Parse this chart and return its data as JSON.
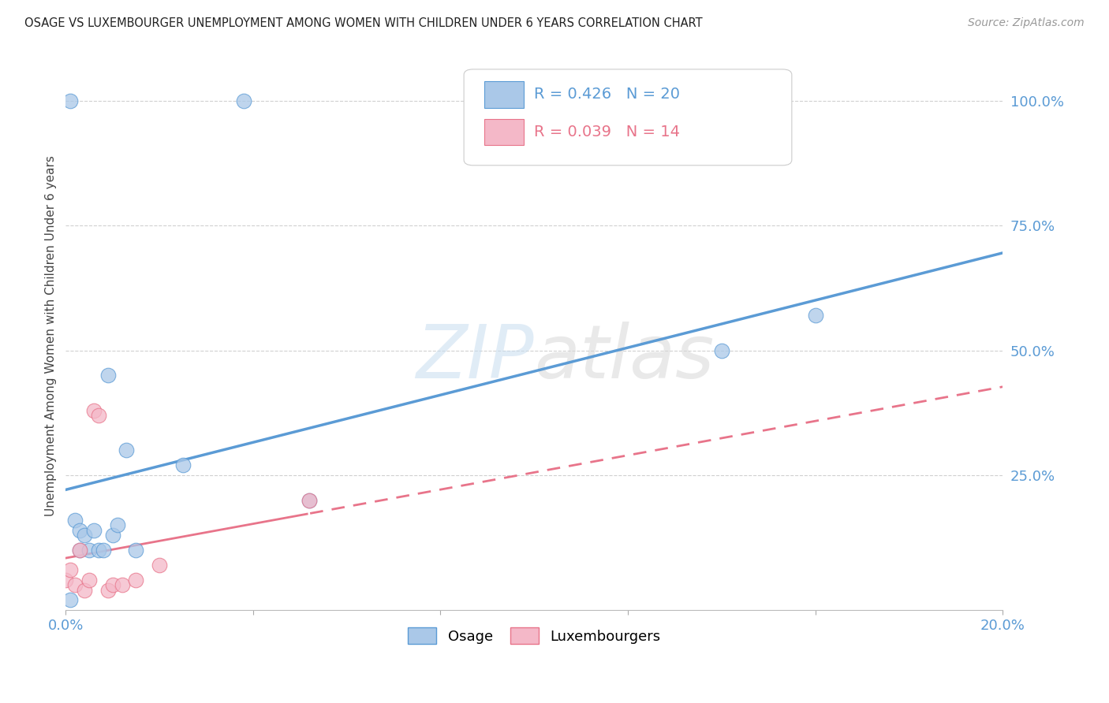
{
  "title": "OSAGE VS LUXEMBOURGER UNEMPLOYMENT AMONG WOMEN WITH CHILDREN UNDER 6 YEARS CORRELATION CHART",
  "source": "Source: ZipAtlas.com",
  "ylabel": "Unemployment Among Women with Children Under 6 years",
  "r_osage": 0.426,
  "n_osage": 20,
  "r_lux": 0.039,
  "n_lux": 14,
  "xlim": [
    0.0,
    0.2
  ],
  "ylim": [
    -0.02,
    1.08
  ],
  "xticks": [
    0.0,
    0.04,
    0.08,
    0.12,
    0.16,
    0.2
  ],
  "xtick_labels": [
    "0.0%",
    "",
    "",
    "",
    "",
    "20.0%"
  ],
  "yticks_right": [
    0.25,
    0.5,
    0.75,
    1.0
  ],
  "ytick_labels_right": [
    "25.0%",
    "50.0%",
    "75.0%",
    "100.0%"
  ],
  "osage_x": [
    0.001,
    0.001,
    0.002,
    0.003,
    0.003,
    0.004,
    0.005,
    0.006,
    0.007,
    0.008,
    0.009,
    0.01,
    0.011,
    0.013,
    0.015,
    0.025,
    0.038,
    0.052,
    0.14,
    0.16
  ],
  "osage_y": [
    1.0,
    0.0,
    0.16,
    0.14,
    0.1,
    0.13,
    0.1,
    0.14,
    0.1,
    0.1,
    0.45,
    0.13,
    0.15,
    0.3,
    0.1,
    0.27,
    1.0,
    0.2,
    0.5,
    0.57
  ],
  "lux_x": [
    0.0,
    0.001,
    0.002,
    0.003,
    0.004,
    0.005,
    0.006,
    0.007,
    0.009,
    0.01,
    0.012,
    0.015,
    0.02,
    0.052
  ],
  "lux_y": [
    0.04,
    0.06,
    0.03,
    0.1,
    0.02,
    0.04,
    0.38,
    0.37,
    0.02,
    0.03,
    0.03,
    0.04,
    0.07,
    0.2
  ],
  "osage_color": "#aac8e8",
  "osage_line_color": "#5b9bd5",
  "lux_color": "#f4b8c8",
  "lux_line_color": "#e8748a",
  "watermark_color": "#e0e8f0",
  "background_color": "#ffffff",
  "grid_color": "#d0d0d0",
  "axis_label_color": "#5b9bd5",
  "title_color": "#222222",
  "source_color": "#999999"
}
